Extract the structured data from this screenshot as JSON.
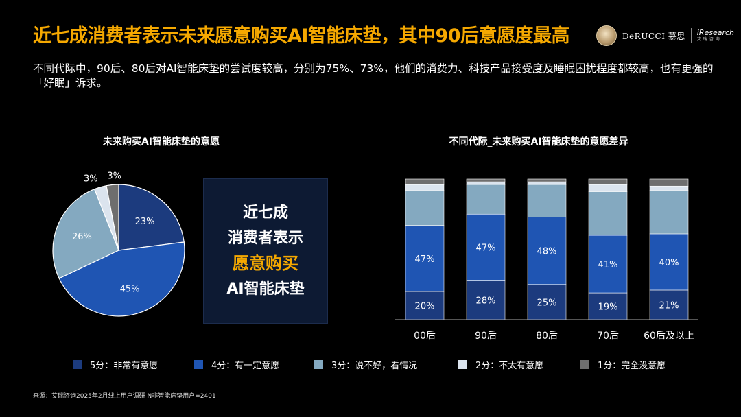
{
  "title": "近七成消费者表示未来愿意购买AI智能床垫，其中90后意愿度最高",
  "subtitle": "不同代际中，90后、80后对AI智能床垫的尝试度较高，分别为75%、73%，他们的消费力、科技产品接受度及睡眠困扰程度都较高，也有更强的「好眠」诉求。",
  "logos": {
    "brand": "DeRUCCI 慕思",
    "research": "iResearch",
    "research_sub": "艾瑞咨询"
  },
  "callout": {
    "line1": "近七成",
    "line2": "消费者表示",
    "line3": "愿意购买",
    "line4": "AI智能床垫"
  },
  "legend": [
    {
      "label": "5分：非常有意愿",
      "color": "#1c3b7e"
    },
    {
      "label": "4分：有一定意愿",
      "color": "#1f55b3"
    },
    {
      "label": "3分：说不好，看情况",
      "color": "#84a9c0"
    },
    {
      "label": "2分：不太有意愿",
      "color": "#dbe4ee"
    },
    {
      "label": "1分：完全没意愿",
      "color": "#6e6e6e"
    }
  ],
  "source": "来源：艾瑞咨询2025年2月线上用户调研 N非智能床垫用户=2401",
  "chart_data": [
    {
      "type": "pie",
      "title": "未来购买AI智能床垫的意愿",
      "categories": [
        "5分：非常有意愿",
        "4分：有一定意愿",
        "3分：说不好，看情况",
        "2分：不太有意愿",
        "1分：完全没意愿"
      ],
      "values": [
        23,
        45,
        26,
        3,
        3
      ],
      "labels": [
        "23%",
        "45%",
        "26%",
        "3%",
        "3%"
      ],
      "colors": [
        "#1c3b7e",
        "#1f55b3",
        "#84a9c0",
        "#dbe4ee",
        "#6e6e6e"
      ]
    },
    {
      "type": "bar",
      "stacked": true,
      "title": "不同代际_未来购买AI智能床垫的意愿差异",
      "categories": [
        "00后",
        "90后",
        "80后",
        "70后",
        "60后及以上"
      ],
      "ylim": [
        0,
        100
      ],
      "series": [
        {
          "name": "5分：非常有意愿",
          "values": [
            20,
            28,
            25,
            19,
            21
          ],
          "labels": [
            "20%",
            "28%",
            "25%",
            "19%",
            "21%"
          ],
          "color": "#1c3b7e"
        },
        {
          "name": "4分：有一定意愿",
          "values": [
            47,
            47,
            48,
            41,
            40
          ],
          "labels": [
            "47%",
            "47%",
            "48%",
            "41%",
            "40%"
          ],
          "color": "#1f55b3"
        },
        {
          "name": "3分：说不好，看情况",
          "values": [
            25,
            21,
            23,
            31,
            31
          ],
          "color": "#84a9c0"
        },
        {
          "name": "2分：不太有意愿",
          "values": [
            4,
            2,
            2,
            5,
            3
          ],
          "color": "#dbe4ee"
        },
        {
          "name": "1分：完全没意愿",
          "values": [
            4,
            2,
            2,
            4,
            5
          ],
          "color": "#6e6e6e"
        }
      ]
    }
  ]
}
